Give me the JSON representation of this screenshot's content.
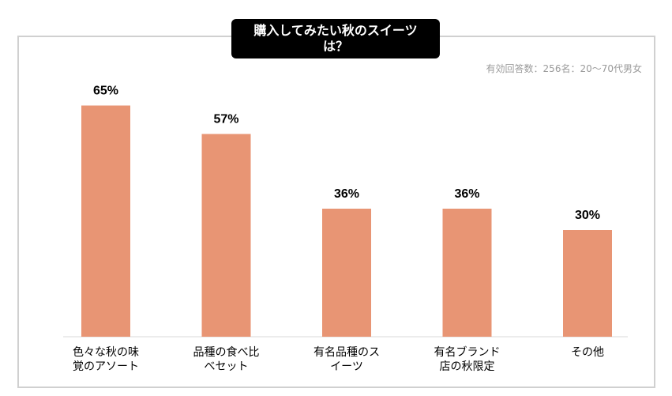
{
  "title_line1": "購入してみたい秋のスイーツ",
  "title_line2": "は？",
  "subtitle": "有効回答数：256名：20〜70代男女",
  "colors": {
    "bar": "#e89574",
    "frame": "#d0d0d0"
  },
  "chart_data": {
    "type": "bar",
    "categories": [
      [
        "色々な秋の味",
        "覚のアソート"
      ],
      [
        "品種の食べ比",
        "べセット"
      ],
      [
        "有名品種のス",
        "イーツ"
      ],
      [
        "有名ブランド",
        "店の秋限定"
      ],
      [
        "その他",
        ""
      ]
    ],
    "values": [
      65,
      57,
      36,
      36,
      30
    ],
    "value_labels": [
      "65%",
      "57%",
      "36%",
      "36%",
      "30%"
    ],
    "ylim": [
      0,
      100
    ],
    "title": "購入してみたい秋のスイーツは？",
    "grid": false
  }
}
